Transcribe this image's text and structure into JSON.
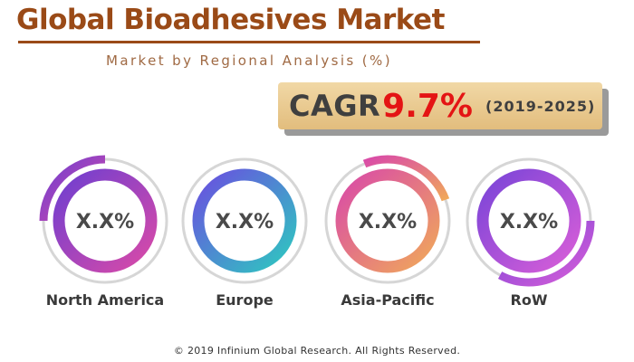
{
  "header": {
    "title": "Global Bioadhesives Market",
    "subtitle": "Market by Regional Analysis (%)"
  },
  "cagr": {
    "label": "CAGR",
    "value": "9.7%",
    "period": "(2019-2025)"
  },
  "chart_data": {
    "type": "donut",
    "regions": [
      {
        "name": "North America",
        "value_label": "X.X%",
        "gradient": [
          "#6f3fd0",
          "#d94aa8"
        ]
      },
      {
        "name": "Europe",
        "value_label": "X.X%",
        "gradient": [
          "#6a4fe0",
          "#2ec8c0"
        ]
      },
      {
        "name": "Asia-Pacific",
        "value_label": "X.X%",
        "gradient": [
          "#d94aa8",
          "#f0a85a"
        ]
      },
      {
        "name": "RoW",
        "value_label": "X.X%",
        "gradient": [
          "#7a45d8",
          "#d85ed8"
        ]
      }
    ]
  },
  "footer": {
    "copyright": "© 2019 Infinium Global Research. All Rights Reserved."
  }
}
